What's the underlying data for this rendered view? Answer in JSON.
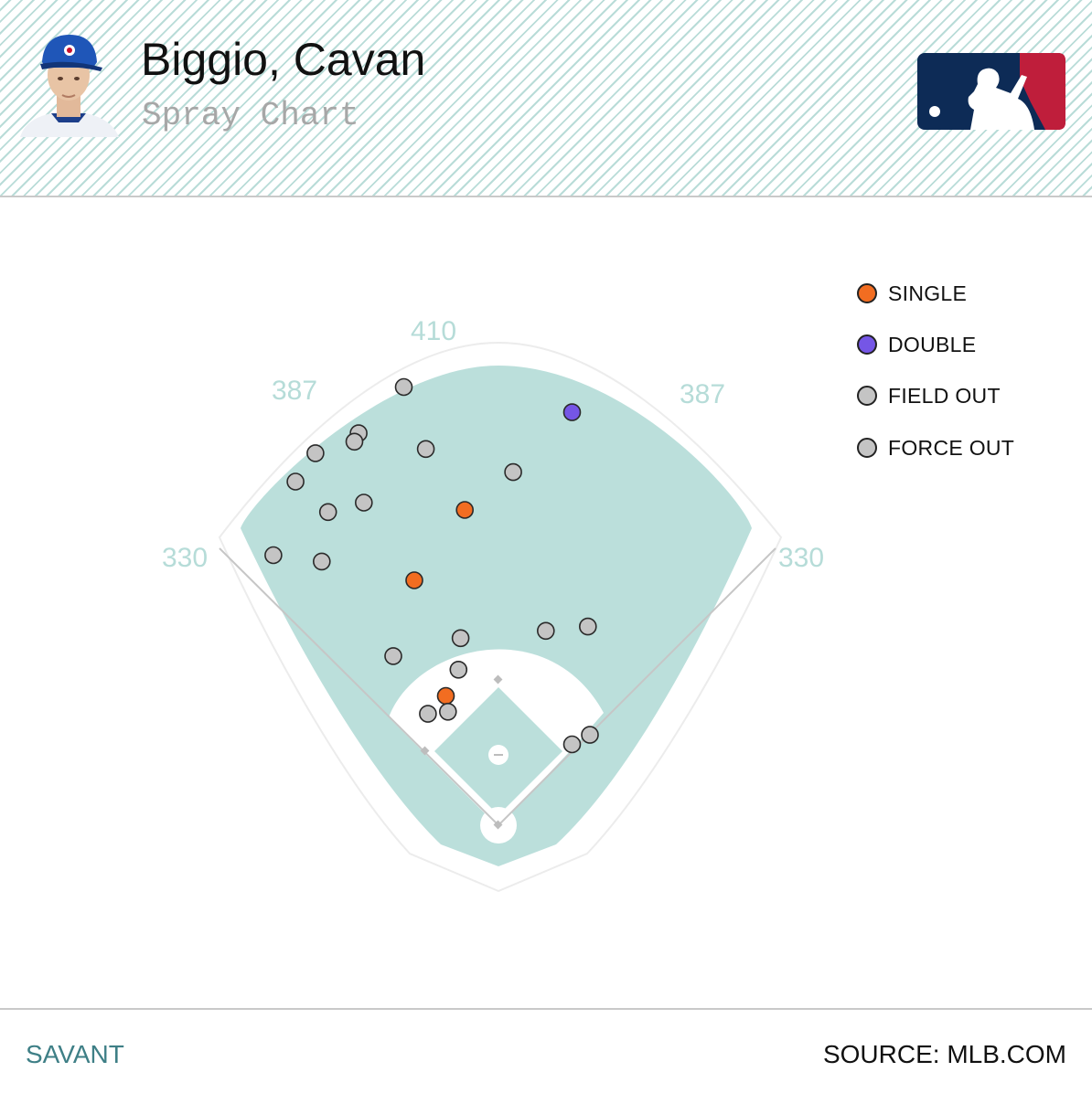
{
  "header": {
    "player_name": "Biggio, Cavan",
    "subtitle": "Spray Chart"
  },
  "footer": {
    "left_label": "SAVANT",
    "right_label": "SOURCE: MLB.COM"
  },
  "colors": {
    "field_green": "#bbdfdb",
    "infield_dirt": "#ffffff",
    "single": "#f26d21",
    "double": "#7556e6",
    "field_out": "#c4c4c4",
    "force_out": "#c4c4c4",
    "accent_text": "#3e7f86",
    "mlb_blue": "#0d2b56",
    "mlb_red": "#bf1e3b"
  },
  "icons": {
    "avatar": "player-headshot-icon",
    "logo": "mlb-logo-icon"
  },
  "chart_data": {
    "type": "scatter",
    "title": "Spray Chart",
    "legend_position": "top-right",
    "distance_labels": [
      {
        "id": "left-line",
        "text": "330"
      },
      {
        "id": "left-center",
        "text": "387"
      },
      {
        "id": "center",
        "text": "410"
      },
      {
        "id": "right-center",
        "text": "387"
      },
      {
        "id": "right-line",
        "text": "330"
      }
    ],
    "legend": [
      {
        "key": "single",
        "label": "SINGLE"
      },
      {
        "key": "double",
        "label": "DOUBLE"
      },
      {
        "key": "field_out",
        "label": "FIELD OUT"
      },
      {
        "key": "force_out",
        "label": "FORCE OUT"
      }
    ],
    "series": [
      {
        "name": "SINGLE",
        "key": "single",
        "points": [
          {
            "x": -32,
            "y": 300
          },
          {
            "x": -80,
            "y": 233
          },
          {
            "x": -50,
            "y": 123
          }
        ]
      },
      {
        "name": "DOUBLE",
        "key": "double",
        "points": [
          {
            "x": 70,
            "y": 393
          }
        ]
      },
      {
        "name": "FIELD OUT",
        "key": "field_out",
        "points": [
          {
            "x": -90,
            "y": 417
          },
          {
            "x": -133,
            "y": 373
          },
          {
            "x": -137,
            "y": 365
          },
          {
            "x": -69,
            "y": 358
          },
          {
            "x": -174,
            "y": 354
          },
          {
            "x": 14,
            "y": 336
          },
          {
            "x": -193,
            "y": 327
          },
          {
            "x": -128,
            "y": 307
          },
          {
            "x": -162,
            "y": 298
          },
          {
            "x": -214,
            "y": 257
          },
          {
            "x": -168,
            "y": 251
          },
          {
            "x": -36,
            "y": 178
          },
          {
            "x": 45,
            "y": 185
          },
          {
            "x": 85,
            "y": 189
          },
          {
            "x": -100,
            "y": 161
          },
          {
            "x": -38,
            "y": 148
          },
          {
            "x": -67,
            "y": 106
          },
          {
            "x": -48,
            "y": 108
          },
          {
            "x": 87,
            "y": 86
          },
          {
            "x": 70,
            "y": 77
          }
        ]
      },
      {
        "name": "FORCE OUT",
        "key": "force_out",
        "points": []
      }
    ]
  }
}
